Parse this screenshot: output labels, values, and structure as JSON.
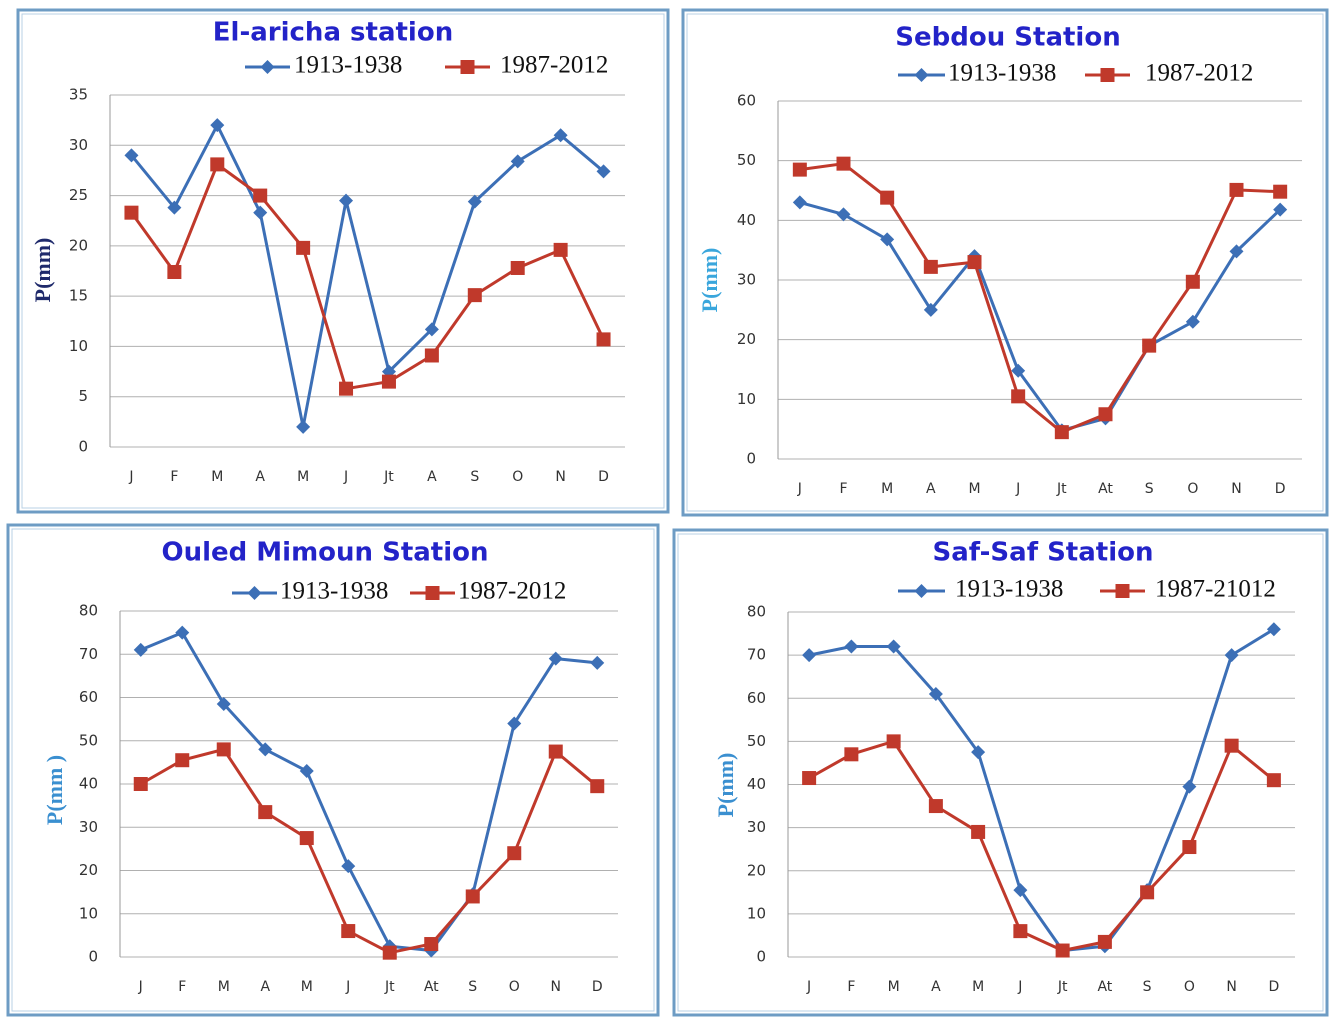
{
  "chart_data": [
    {
      "type": "line",
      "title": "El-aricha station",
      "ylabel": "P(mm)",
      "ylabel_color": "#1f2a6b",
      "categories": [
        "J",
        "F",
        "M",
        "A",
        "M",
        "J",
        "Jt",
        "A",
        "S",
        "O",
        "N",
        "D"
      ],
      "series": [
        {
          "name": "1913-1938",
          "color": "#3c6fb6",
          "marker": "diamond",
          "values": [
            29,
            23.8,
            32,
            23.3,
            2,
            24.5,
            7.5,
            11.7,
            24.4,
            28.4,
            31,
            27.4
          ]
        },
        {
          "name": "1987-2012",
          "color": "#c0392b",
          "marker": "square",
          "values": [
            23.3,
            17.4,
            28.1,
            25,
            19.8,
            5.8,
            6.5,
            9.1,
            15.1,
            17.8,
            19.6,
            10.7
          ]
        }
      ],
      "ylim": [
        0,
        35
      ],
      "yticks": [
        0,
        5,
        10,
        15,
        20,
        25,
        30,
        35
      ],
      "grid": true
    },
    {
      "type": "line",
      "title": "Sebdou Station",
      "ylabel": "P(mm)",
      "ylabel_color": "#3aa6dc",
      "categories": [
        "J",
        "F",
        "M",
        "A",
        "M",
        "J",
        "Jt",
        "At",
        "S",
        "O",
        "N",
        "D"
      ],
      "series": [
        {
          "name": "1913-1938",
          "color": "#3c6fb6",
          "marker": "diamond",
          "values": [
            43,
            41,
            36.8,
            25,
            34,
            14.8,
            4.8,
            6.8,
            19,
            23,
            34.8,
            41.8
          ]
        },
        {
          "name": "1987-2012",
          "color": "#c0392b",
          "marker": "square",
          "values": [
            48.5,
            49.5,
            43.8,
            32.2,
            33,
            10.5,
            4.5,
            7.5,
            19,
            29.7,
            45.1,
            44.8
          ]
        }
      ],
      "ylim": [
        0,
        60
      ],
      "yticks": [
        0,
        10,
        20,
        30,
        40,
        50,
        60
      ],
      "grid": true
    },
    {
      "type": "line",
      "title": "Ouled Mimoun Station",
      "ylabel": "P(mm )",
      "ylabel_color": "#3a8fd0",
      "categories": [
        "J",
        "F",
        "M",
        "A",
        "M",
        "J",
        "Jt",
        "At",
        "S",
        "O",
        "N",
        "D"
      ],
      "series": [
        {
          "name": "1913-1938",
          "color": "#3c6fb6",
          "marker": "diamond",
          "values": [
            71,
            75,
            58.5,
            48,
            43,
            21,
            2.5,
            1.5,
            14.5,
            54,
            69,
            68
          ]
        },
        {
          "name": "1987-2012",
          "color": "#c0392b",
          "marker": "square",
          "values": [
            40,
            45.5,
            48,
            33.5,
            27.5,
            6,
            1,
            3,
            14,
            24,
            47.5,
            39.5
          ]
        }
      ],
      "ylim": [
        0,
        80
      ],
      "yticks": [
        0,
        10,
        20,
        30,
        40,
        50,
        60,
        70,
        80
      ],
      "grid": true
    },
    {
      "type": "line",
      "title": "Saf-Saf Station",
      "ylabel": "P(mm)",
      "ylabel_color": "#3a8fd0",
      "categories": [
        "J",
        "F",
        "M",
        "A",
        "M",
        "J",
        "Jt",
        "At",
        "S",
        "O",
        "N",
        "D"
      ],
      "series": [
        {
          "name": "1913-1938",
          "color": "#3c6fb6",
          "marker": "diamond",
          "values": [
            70,
            72,
            72,
            61,
            47.5,
            15.5,
            1.5,
            2.5,
            15.5,
            39.5,
            70,
            76
          ]
        },
        {
          "name": "1987-21012",
          "color": "#c0392b",
          "marker": "square",
          "values": [
            41.5,
            47,
            50,
            35,
            29,
            6,
            1.5,
            3.5,
            15,
            25.5,
            49,
            41
          ]
        }
      ],
      "ylim": [
        0,
        80
      ],
      "yticks": [
        0,
        10,
        20,
        30,
        40,
        50,
        60,
        70,
        80
      ],
      "grid": true
    }
  ]
}
